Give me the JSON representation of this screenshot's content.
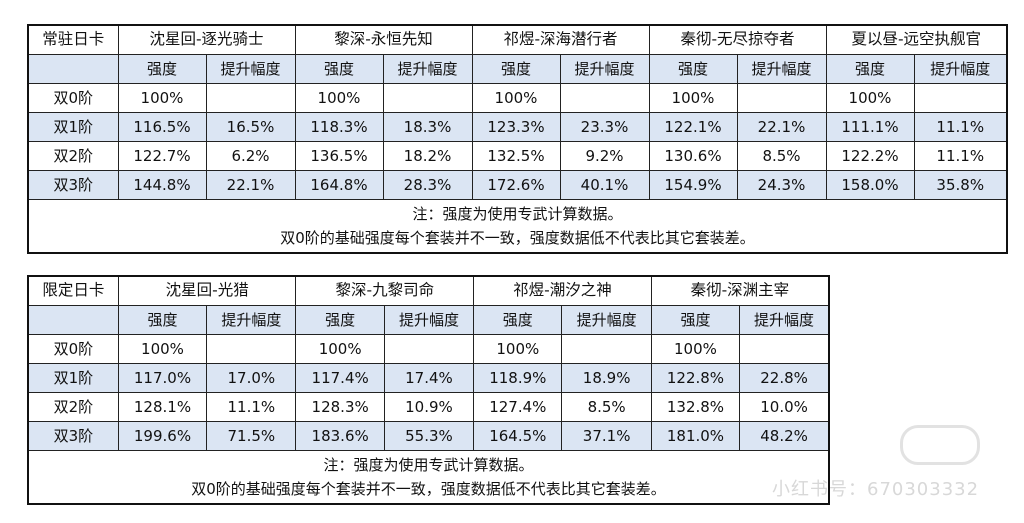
{
  "table1": {
    "corner": "常驻日卡",
    "sets": [
      "沈星回-逐光骑士",
      "黎深-永恒先知",
      "祁煜-深海潜行者",
      "秦彻-无尽掠夺者",
      "夏以昼-远空执舰官"
    ],
    "sub_headers": [
      "强度",
      "提升幅度"
    ],
    "rows": [
      {
        "label": "双0阶",
        "cells": [
          "100%",
          "",
          "100%",
          "",
          "100%",
          "",
          "100%",
          "",
          "100%",
          ""
        ]
      },
      {
        "label": "双1阶",
        "cells": [
          "116.5%",
          "16.5%",
          "118.3%",
          "18.3%",
          "123.3%",
          "23.3%",
          "122.1%",
          "22.1%",
          "111.1%",
          "11.1%"
        ]
      },
      {
        "label": "双2阶",
        "cells": [
          "122.7%",
          "6.2%",
          "136.5%",
          "18.2%",
          "132.5%",
          "9.2%",
          "130.6%",
          "8.5%",
          "122.2%",
          "11.1%"
        ]
      },
      {
        "label": "双3阶",
        "cells": [
          "144.8%",
          "22.1%",
          "164.8%",
          "28.3%",
          "172.6%",
          "40.1%",
          "154.9%",
          "24.3%",
          "158.0%",
          "35.8%"
        ]
      }
    ],
    "note_line1": "注：强度为使用专武计算数据。",
    "note_line2": "双0阶的基础强度每个套装并不一致，强度数据低不代表比其它套装差。"
  },
  "table2": {
    "corner": "限定日卡",
    "sets": [
      "沈星回-光猎",
      "黎深-九黎司命",
      "祁煜-潮汐之神",
      "秦彻-深渊主宰"
    ],
    "sub_headers": [
      "强度",
      "提升幅度"
    ],
    "rows": [
      {
        "label": "双0阶",
        "cells": [
          "100%",
          "",
          "100%",
          "",
          "100%",
          "",
          "100%",
          ""
        ]
      },
      {
        "label": "双1阶",
        "cells": [
          "117.0%",
          "17.0%",
          "117.4%",
          "17.4%",
          "118.9%",
          "18.9%",
          "122.8%",
          "22.8%"
        ]
      },
      {
        "label": "双2阶",
        "cells": [
          "128.1%",
          "11.1%",
          "128.3%",
          "10.9%",
          "127.4%",
          "8.5%",
          "132.8%",
          "10.0%"
        ]
      },
      {
        "label": "双3阶",
        "cells": [
          "199.6%",
          "71.5%",
          "183.6%",
          "55.3%",
          "164.5%",
          "37.1%",
          "181.0%",
          "48.2%"
        ]
      }
    ],
    "note_line1": "注：强度为使用专武计算数据。",
    "note_line2": "双0阶的基础强度每个套装并不一致，强度数据低不代表比其它套装差。"
  },
  "watermark": {
    "text": "小红书号：670303332"
  },
  "colors": {
    "shade": "#dbe5f3",
    "border": "#222222"
  }
}
